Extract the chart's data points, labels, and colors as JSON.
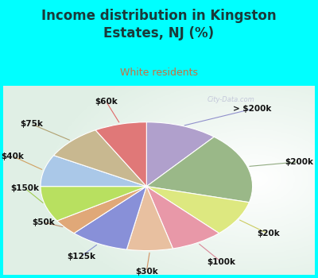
{
  "title": "Income distribution in Kingston\nEstates, NJ (%)",
  "subtitle": "White residents",
  "title_color": "#1a3a3a",
  "subtitle_color": "#c87040",
  "background_cyan": "#00ffff",
  "background_chart_color": "#e0f0e8",
  "labels": [
    "> $200k",
    "$200k",
    "$20k",
    "$100k",
    "$30k",
    "$125k",
    "$50k",
    "$150k",
    "$40k",
    "$75k",
    "$60k"
  ],
  "values": [
    11,
    18,
    9,
    8,
    7,
    9,
    4,
    9,
    8,
    9,
    8
  ],
  "colors": [
    "#b0a0cc",
    "#9ab888",
    "#dde880",
    "#e898a8",
    "#e8c0a0",
    "#8890d8",
    "#e0a878",
    "#b8e060",
    "#aac8e8",
    "#c8b890",
    "#e07878"
  ],
  "startangle": 90,
  "label_fontsize": 7.5,
  "label_color": "#111111",
  "title_fontsize": 12,
  "subtitle_fontsize": 9
}
